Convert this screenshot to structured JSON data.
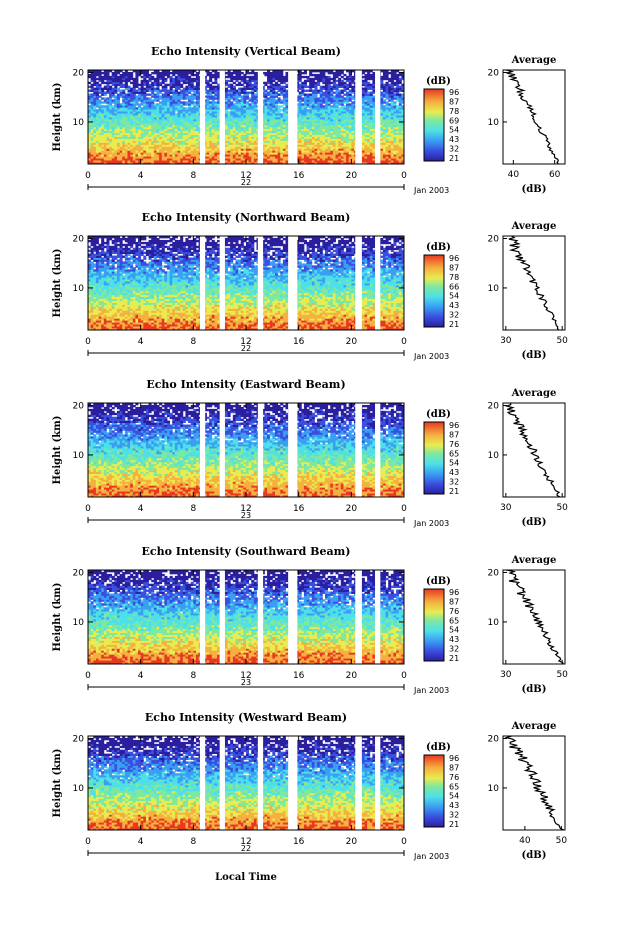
{
  "global": {
    "xlabel": "Local Time",
    "date_label": "Jan 2003"
  },
  "chart_data": [
    {
      "type": "heatmap",
      "title": "Echo Intensity (Vertical Beam)",
      "ylabel": "Height (km)",
      "xticks": [
        "0",
        "4",
        "8",
        "12",
        "16",
        "20",
        "0"
      ],
      "day_label": "22",
      "yticks": [
        "10",
        "20"
      ],
      "xlim": [
        0,
        24
      ],
      "ylim": [
        1.5,
        20.5
      ],
      "gaps": [
        [
          8.5,
          8.9
        ],
        [
          10.0,
          10.4
        ],
        [
          12.9,
          13.3
        ],
        [
          15.2,
          15.9
        ],
        [
          20.3,
          20.8
        ],
        [
          21.8,
          22.2
        ]
      ],
      "colorbar": {
        "title": "(dB)",
        "ticks": [
          "96",
          "87",
          "78",
          "69",
          "54",
          "43",
          "32",
          "21"
        ]
      },
      "profile": {
        "title": "Average",
        "xticks": [
          "40",
          "60"
        ],
        "xlabel": "(dB)",
        "xlim": [
          35,
          65
        ],
        "yticks": [
          "10",
          "20"
        ],
        "bottom": 62,
        "top": 38
      }
    },
    {
      "type": "heatmap",
      "title": "Echo Intensity (Northward Beam)",
      "ylabel": "Height (km)",
      "xticks": [
        "0",
        "4",
        "8",
        "12",
        "16",
        "20",
        "0"
      ],
      "day_label": "22",
      "yticks": [
        "10",
        "20"
      ],
      "xlim": [
        0,
        24
      ],
      "ylim": [
        1.5,
        20.5
      ],
      "gaps": [
        [
          8.5,
          8.9
        ],
        [
          10.0,
          10.4
        ],
        [
          12.9,
          13.3
        ],
        [
          15.2,
          15.9
        ],
        [
          20.3,
          20.8
        ],
        [
          21.8,
          22.2
        ]
      ],
      "colorbar": {
        "title": "(dB)",
        "ticks": [
          "96",
          "87",
          "78",
          "66",
          "54",
          "43",
          "32",
          "21"
        ]
      },
      "profile": {
        "title": "Average",
        "xticks": [
          "30",
          "50"
        ],
        "xlabel": "(dB)",
        "xlim": [
          29,
          51
        ],
        "yticks": [
          "10",
          "20"
        ],
        "bottom": 49,
        "top": 31
      }
    },
    {
      "type": "heatmap",
      "title": "Echo Intensity (Eastward Beam)",
      "ylabel": "Height (km)",
      "xticks": [
        "0",
        "4",
        "8",
        "12",
        "16",
        "20",
        "0"
      ],
      "day_label": "23",
      "yticks": [
        "10",
        "20"
      ],
      "xlim": [
        0,
        24
      ],
      "ylim": [
        1.5,
        20.5
      ],
      "gaps": [
        [
          8.5,
          8.9
        ],
        [
          10.0,
          10.4
        ],
        [
          12.9,
          13.3
        ],
        [
          15.2,
          15.9
        ],
        [
          20.3,
          20.8
        ],
        [
          21.8,
          22.2
        ]
      ],
      "colorbar": {
        "title": "(dB)",
        "ticks": [
          "96",
          "87",
          "76",
          "65",
          "54",
          "43",
          "32",
          "21"
        ]
      },
      "profile": {
        "title": "Average",
        "xticks": [
          "30",
          "50"
        ],
        "xlabel": "(dB)",
        "xlim": [
          29,
          51
        ],
        "yticks": [
          "10",
          "20"
        ],
        "bottom": 49,
        "top": 30
      }
    },
    {
      "type": "heatmap",
      "title": "Echo Intensity (Southward Beam)",
      "ylabel": "Height (km)",
      "xticks": [
        "0",
        "4",
        "8",
        "12",
        "16",
        "20",
        "0"
      ],
      "day_label": "23",
      "yticks": [
        "10",
        "20"
      ],
      "xlim": [
        0,
        24
      ],
      "ylim": [
        1.5,
        20.5
      ],
      "gaps": [
        [
          8.5,
          8.9
        ],
        [
          10.0,
          10.4
        ],
        [
          12.9,
          13.3
        ],
        [
          15.2,
          15.9
        ],
        [
          20.3,
          20.8
        ],
        [
          21.8,
          22.2
        ]
      ],
      "colorbar": {
        "title": "(dB)",
        "ticks": [
          "96",
          "87",
          "76",
          "65",
          "54",
          "43",
          "32",
          "21"
        ]
      },
      "profile": {
        "title": "Average",
        "xticks": [
          "30",
          "50"
        ],
        "xlabel": "(dB)",
        "xlim": [
          29,
          51
        ],
        "yticks": [
          "10",
          "20"
        ],
        "bottom": 50,
        "top": 31
      }
    },
    {
      "type": "heatmap",
      "title": "Echo Intensity (Westward Beam)",
      "ylabel": "Height (km)",
      "xticks": [
        "0",
        "4",
        "8",
        "12",
        "16",
        "20",
        "0"
      ],
      "day_label": "22",
      "yticks": [
        "10",
        "20"
      ],
      "xlim": [
        0,
        24
      ],
      "ylim": [
        1.5,
        20.5
      ],
      "gaps": [
        [
          8.5,
          8.9
        ],
        [
          10.0,
          10.4
        ],
        [
          12.9,
          13.3
        ],
        [
          15.2,
          15.9
        ],
        [
          20.3,
          20.8
        ],
        [
          21.8,
          22.2
        ]
      ],
      "colorbar": {
        "title": "(dB)",
        "ticks": [
          "96",
          "87",
          "76",
          "65",
          "54",
          "43",
          "32",
          "21"
        ]
      },
      "profile": {
        "title": "Average",
        "xticks": [
          "40",
          "50"
        ],
        "xlabel": "(dB)",
        "xlim": [
          34,
          51
        ],
        "yticks": [
          "10",
          "20"
        ],
        "bottom": 50,
        "top": 36
      }
    }
  ]
}
